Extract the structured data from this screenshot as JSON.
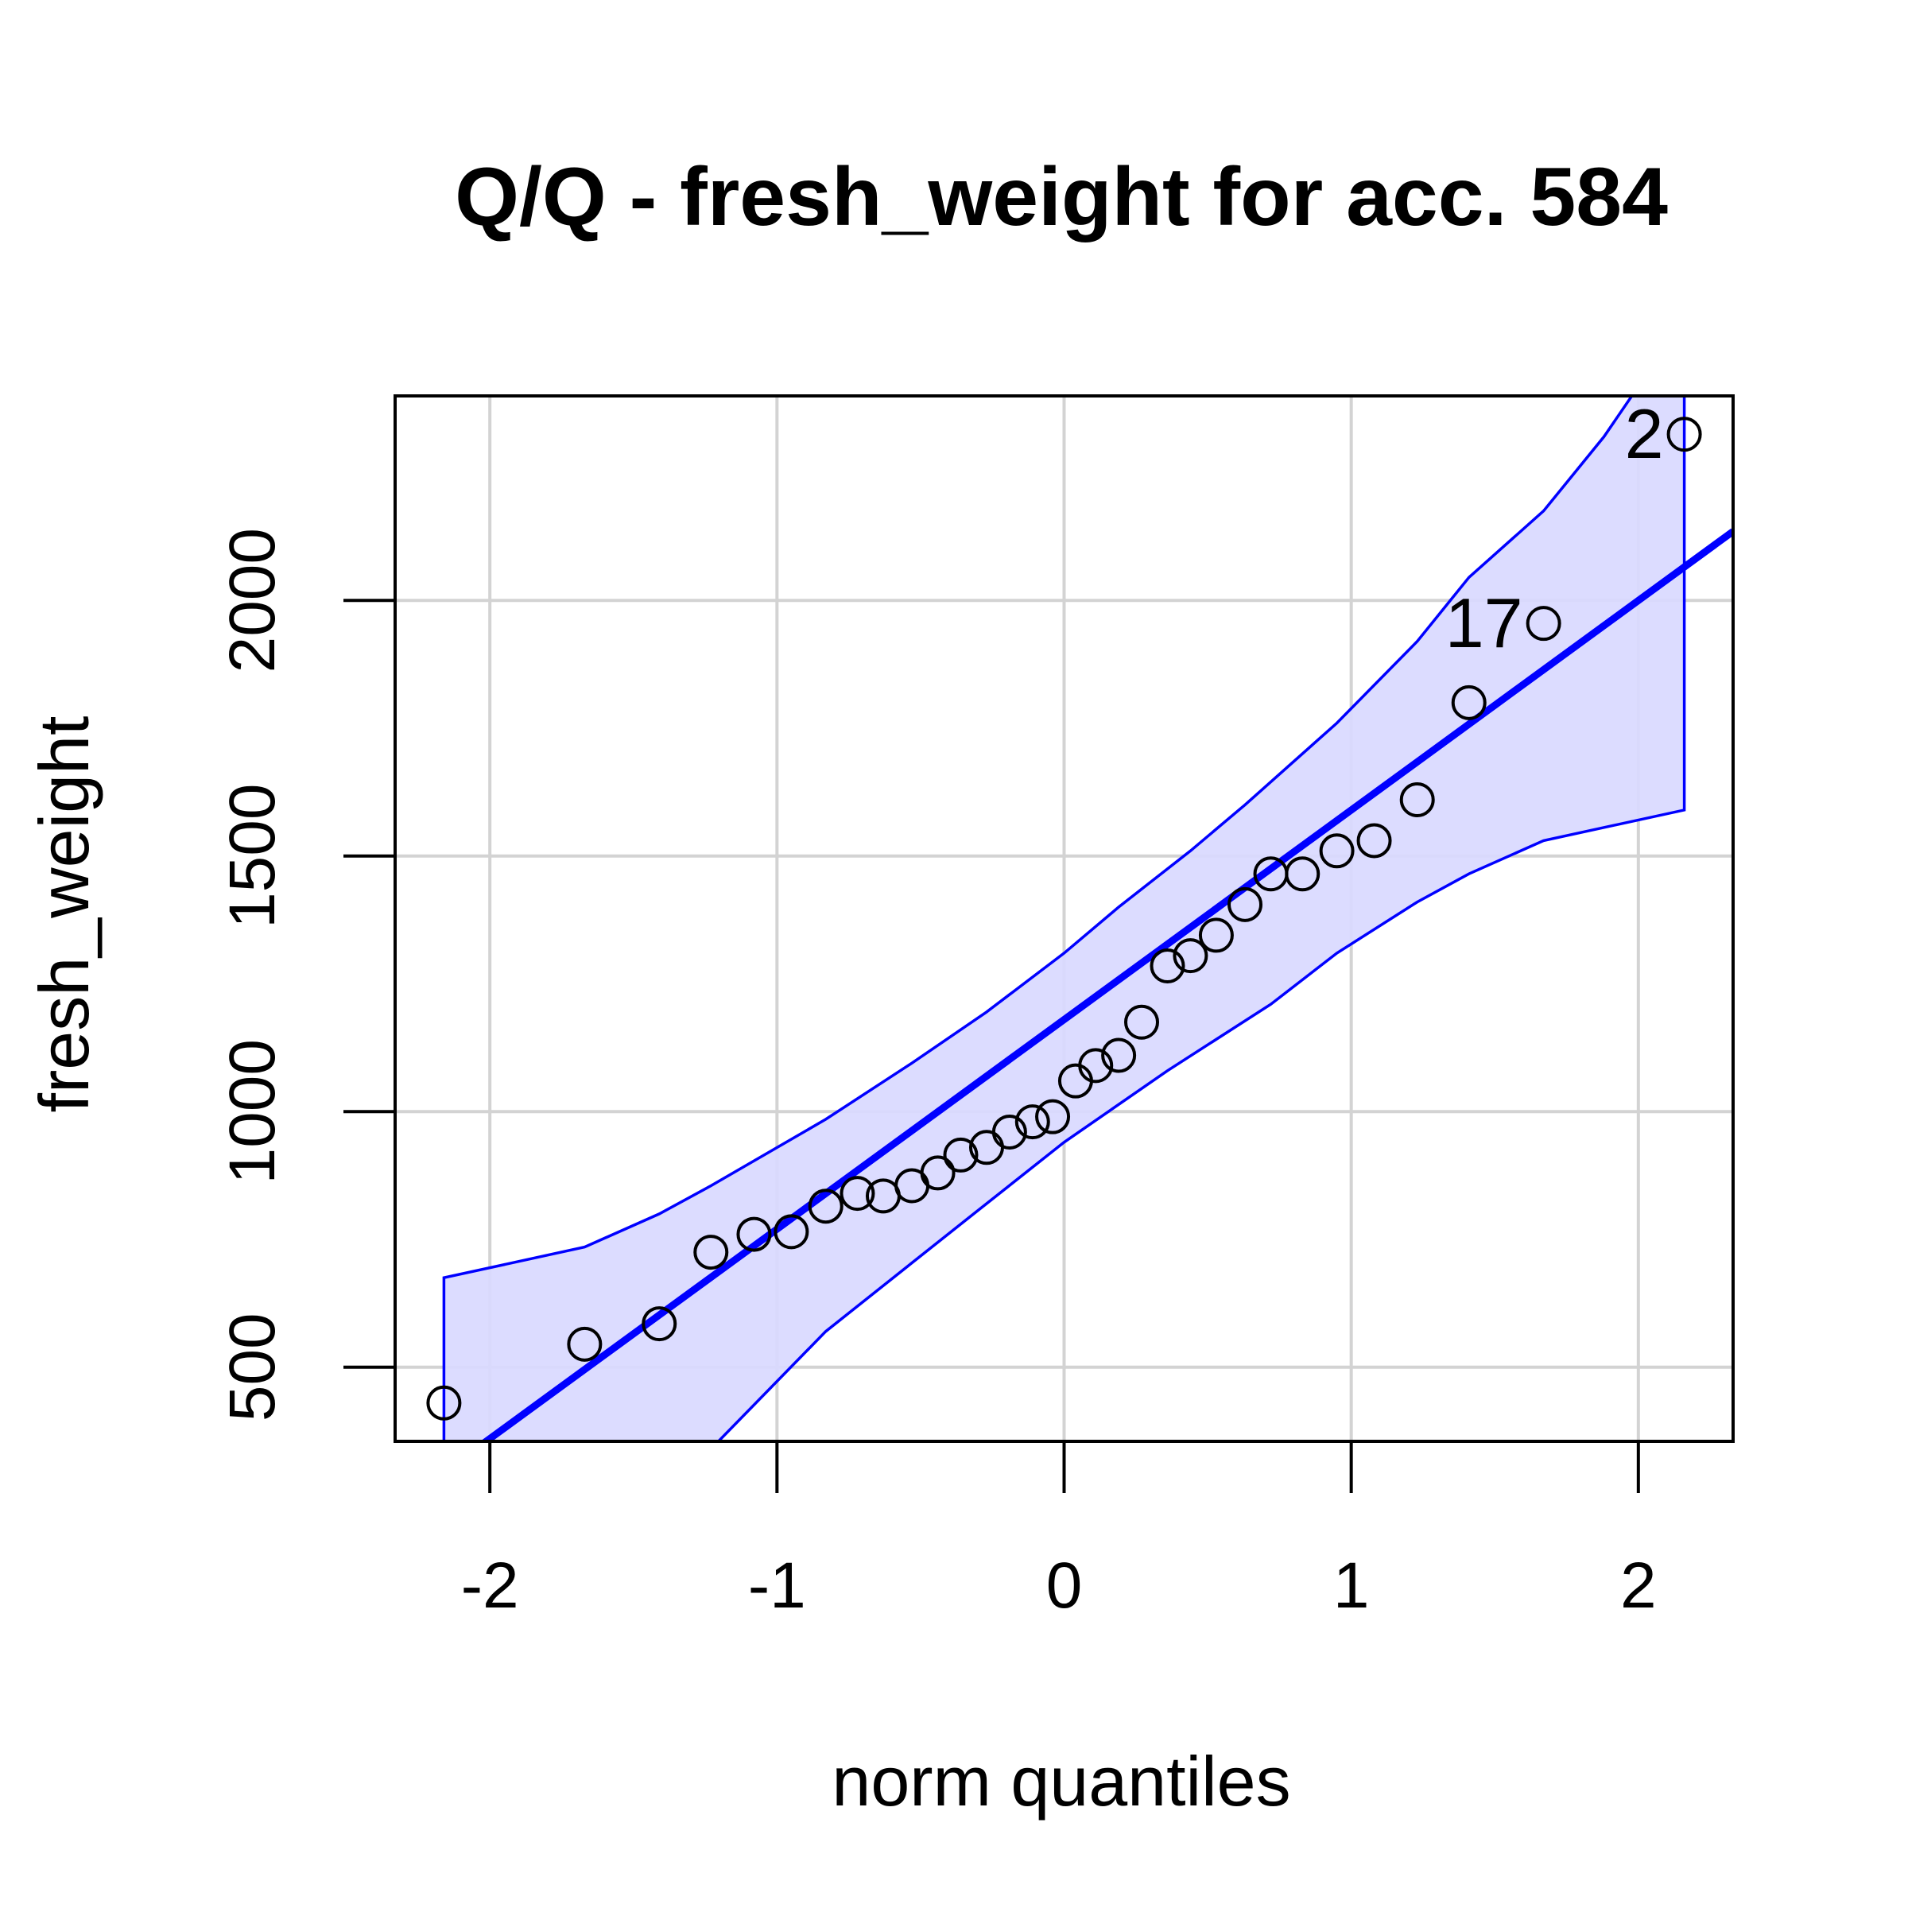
{
  "chart_data": {
    "type": "scatter",
    "title": "Q/Q - fresh_weight for acc. 584",
    "xlabel": "norm quantiles",
    "ylabel": "fresh_weight",
    "xlim": [
      -2.33,
      2.33
    ],
    "ylim": [
      355,
      2400
    ],
    "x_ticks": [
      -2,
      -1,
      0,
      1,
      2
    ],
    "x_tick_labels": [
      "-2",
      "-1",
      "0",
      "1",
      "2"
    ],
    "y_ticks": [
      500,
      1000,
      1500,
      2000
    ],
    "y_tick_labels": [
      "500",
      "1000",
      "1500",
      "2000"
    ],
    "grid": true,
    "colors": {
      "line": "#0000ff",
      "band_fill": "#d9d9ff",
      "grid": "#d3d3d3",
      "points": "#000000"
    },
    "points": [
      {
        "x": -2.16,
        "y": 430
      },
      {
        "x": -1.67,
        "y": 545
      },
      {
        "x": -1.41,
        "y": 585
      },
      {
        "x": -1.23,
        "y": 725
      },
      {
        "x": -1.08,
        "y": 760
      },
      {
        "x": -0.95,
        "y": 765
      },
      {
        "x": -0.83,
        "y": 815
      },
      {
        "x": -0.72,
        "y": 840
      },
      {
        "x": -0.63,
        "y": 835
      },
      {
        "x": -0.53,
        "y": 855
      },
      {
        "x": -0.44,
        "y": 880
      },
      {
        "x": -0.36,
        "y": 915
      },
      {
        "x": -0.27,
        "y": 930
      },
      {
        "x": -0.19,
        "y": 960
      },
      {
        "x": -0.11,
        "y": 980
      },
      {
        "x": -0.04,
        "y": 990
      },
      {
        "x": 0.04,
        "y": 1060
      },
      {
        "x": 0.11,
        "y": 1090
      },
      {
        "x": 0.19,
        "y": 1110
      },
      {
        "x": 0.27,
        "y": 1175
      },
      {
        "x": 0.36,
        "y": 1285
      },
      {
        "x": 0.44,
        "y": 1305
      },
      {
        "x": 0.53,
        "y": 1345
      },
      {
        "x": 0.63,
        "y": 1405
      },
      {
        "x": 0.72,
        "y": 1465
      },
      {
        "x": 0.83,
        "y": 1465
      },
      {
        "x": 0.95,
        "y": 1510
      },
      {
        "x": 1.08,
        "y": 1530
      },
      {
        "x": 1.23,
        "y": 1610
      },
      {
        "x": 1.41,
        "y": 1800
      },
      {
        "x": 1.67,
        "y": 1955
      },
      {
        "x": 2.16,
        "y": 2325
      }
    ],
    "labeled_points": [
      {
        "label": "17",
        "x": 1.67,
        "y": 1955
      },
      {
        "label": "2",
        "x": 2.16,
        "y": 2325
      }
    ],
    "reference_line": {
      "x1": -2.33,
      "y1": 225,
      "x2": 2.33,
      "y2": 2135
    },
    "band_upper": [
      {
        "x": -2.16,
        "y": 675
      },
      {
        "x": -1.67,
        "y": 735
      },
      {
        "x": -1.41,
        "y": 800
      },
      {
        "x": -1.23,
        "y": 855
      },
      {
        "x": -0.83,
        "y": 985
      },
      {
        "x": -0.53,
        "y": 1095
      },
      {
        "x": -0.27,
        "y": 1195
      },
      {
        "x": 0.0,
        "y": 1310
      },
      {
        "x": 0.19,
        "y": 1400
      },
      {
        "x": 0.44,
        "y": 1510
      },
      {
        "x": 0.63,
        "y": 1600
      },
      {
        "x": 0.95,
        "y": 1760
      },
      {
        "x": 1.23,
        "y": 1920
      },
      {
        "x": 1.41,
        "y": 2045
      },
      {
        "x": 1.67,
        "y": 2175
      },
      {
        "x": 1.88,
        "y": 2320
      },
      {
        "x": 2.16,
        "y": 2550
      }
    ],
    "band_lower": [
      {
        "x": -2.16,
        "y": 300
      },
      {
        "x": -1.67,
        "y": 150
      },
      {
        "x": -1.23,
        "y": 340
      },
      {
        "x": -0.83,
        "y": 570
      },
      {
        "x": -0.36,
        "y": 780
      },
      {
        "x": 0.0,
        "y": 940
      },
      {
        "x": 0.36,
        "y": 1080
      },
      {
        "x": 0.72,
        "y": 1210
      },
      {
        "x": 0.95,
        "y": 1310
      },
      {
        "x": 1.23,
        "y": 1410
      },
      {
        "x": 1.41,
        "y": 1465
      },
      {
        "x": 1.67,
        "y": 1530
      },
      {
        "x": 2.16,
        "y": 1590
      }
    ]
  }
}
